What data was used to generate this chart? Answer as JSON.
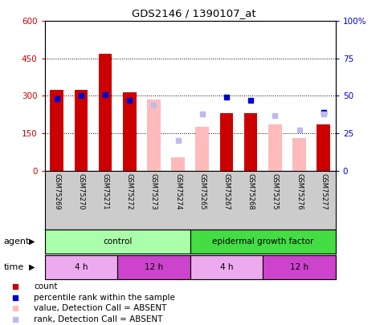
{
  "title": "GDS2146 / 1390107_at",
  "samples": [
    "GSM75269",
    "GSM75270",
    "GSM75271",
    "GSM75272",
    "GSM75273",
    "GSM75274",
    "GSM75265",
    "GSM75267",
    "GSM75268",
    "GSM75275",
    "GSM75276",
    "GSM75277"
  ],
  "count_values": [
    325,
    325,
    470,
    315,
    null,
    null,
    null,
    230,
    230,
    null,
    null,
    185
  ],
  "count_absent": [
    null,
    null,
    null,
    null,
    285,
    55,
    175,
    null,
    null,
    185,
    130,
    null
  ],
  "rank_values": [
    48,
    50,
    51,
    47,
    null,
    null,
    null,
    49,
    47,
    null,
    null,
    39
  ],
  "rank_absent": [
    null,
    null,
    null,
    null,
    44,
    20,
    38,
    null,
    null,
    37,
    27,
    38
  ],
  "ylim_left": [
    0,
    600
  ],
  "ylim_right": [
    0,
    100
  ],
  "yticks_left": [
    0,
    150,
    300,
    450,
    600
  ],
  "yticks_right": [
    0,
    25,
    50,
    75,
    100
  ],
  "ytick_labels_left": [
    "0",
    "150",
    "300",
    "450",
    "600"
  ],
  "ytick_labels_right": [
    "0",
    "25",
    "50",
    "75",
    "100%"
  ],
  "agent_groups": [
    {
      "label": "control",
      "start": 0,
      "end": 6,
      "color": "#AAFFAA"
    },
    {
      "label": "epidermal growth factor",
      "start": 6,
      "end": 12,
      "color": "#44DD44"
    }
  ],
  "time_groups": [
    {
      "label": "4 h",
      "start": 0,
      "end": 3,
      "color": "#EEAAEE"
    },
    {
      "label": "12 h",
      "start": 3,
      "end": 6,
      "color": "#CC44CC"
    },
    {
      "label": "4 h",
      "start": 6,
      "end": 9,
      "color": "#EEAAEE"
    },
    {
      "label": "12 h",
      "start": 9,
      "end": 12,
      "color": "#CC44CC"
    }
  ],
  "count_color": "#CC0000",
  "rank_color": "#0000CC",
  "count_absent_color": "#FFBBBB",
  "rank_absent_color": "#BBBBEE",
  "bg_color": "#FFFFFF",
  "label_area_bg": "#CCCCCC",
  "plot_bg": "#FFFFFF"
}
